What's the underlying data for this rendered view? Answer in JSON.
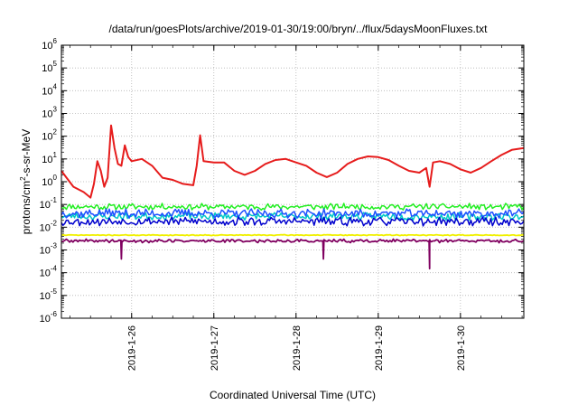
{
  "chart_data": {
    "type": "line",
    "title": "/data/run/goesPlots/archive/2019-01-30/19:00/bryn/../flux/5daysMoonFluxes.txt",
    "xlabel": "Coordinated Universal Time (UTC)",
    "ylabel": {
      "pre": "protons/cm",
      "sup": "2",
      "post": "-s-sr-MeV"
    },
    "x_range_days": [
      "2019-01-25 03:30",
      "2019-01-30 18:30"
    ],
    "x_ticks": [
      "2019-1-26",
      "2019-1-27",
      "2019-1-28",
      "2019-1-29",
      "2019-1-30"
    ],
    "y_scale": "log",
    "ylim": [
      1e-06,
      1000000.0
    ],
    "y_ticks": [
      {
        "base": "10",
        "exp": "-6"
      },
      {
        "base": "10",
        "exp": "-5"
      },
      {
        "base": "10",
        "exp": "-4"
      },
      {
        "base": "10",
        "exp": "-3"
      },
      {
        "base": "10",
        "exp": "-2"
      },
      {
        "base": "10",
        "exp": "-1"
      },
      {
        "base": "10",
        "exp": "0"
      },
      {
        "base": "10",
        "exp": "1"
      },
      {
        "base": "10",
        "exp": "2"
      },
      {
        "base": "10",
        "exp": "3"
      },
      {
        "base": "10",
        "exp": "4"
      },
      {
        "base": "10",
        "exp": "5"
      },
      {
        "base": "10",
        "exp": "6"
      }
    ],
    "grid": true,
    "series": [
      {
        "color": "#e61c1c",
        "width": 2.0,
        "points": [
          [
            "2019-01-25 03:30",
            3.0
          ],
          [
            "2019-01-25 05:00",
            1.5
          ],
          [
            "2019-01-25 07:00",
            0.6
          ],
          [
            "2019-01-25 10:00",
            0.35
          ],
          [
            "2019-01-25 12:00",
            0.2
          ],
          [
            "2019-01-25 13:00",
            0.8
          ],
          [
            "2019-01-25 14:00",
            8
          ],
          [
            "2019-01-25 15:00",
            3
          ],
          [
            "2019-01-25 16:00",
            0.6
          ],
          [
            "2019-01-25 17:00",
            1.5
          ],
          [
            "2019-01-25 18:00",
            300
          ],
          [
            "2019-01-25 19:00",
            30
          ],
          [
            "2019-01-25 20:00",
            6
          ],
          [
            "2019-01-25 21:00",
            5
          ],
          [
            "2019-01-25 22:00",
            40
          ],
          [
            "2019-01-25 23:00",
            12
          ],
          [
            "2019-01-26 00:00",
            8
          ],
          [
            "2019-01-26 03:00",
            10
          ],
          [
            "2019-01-26 06:00",
            5
          ],
          [
            "2019-01-26 09:00",
            1.5
          ],
          [
            "2019-01-26 12:00",
            1.2
          ],
          [
            "2019-01-26 15:00",
            0.8
          ],
          [
            "2019-01-26 18:00",
            0.7
          ],
          [
            "2019-01-26 19:00",
            5
          ],
          [
            "2019-01-26 20:00",
            110
          ],
          [
            "2019-01-26 21:00",
            8
          ],
          [
            "2019-01-27 00:00",
            7
          ],
          [
            "2019-01-27 03:00",
            7
          ],
          [
            "2019-01-27 06:00",
            3
          ],
          [
            "2019-01-27 09:00",
            2
          ],
          [
            "2019-01-27 12:00",
            3
          ],
          [
            "2019-01-27 15:00",
            6
          ],
          [
            "2019-01-27 18:00",
            9
          ],
          [
            "2019-01-27 21:00",
            10
          ],
          [
            "2019-01-28 00:00",
            7
          ],
          [
            "2019-01-28 03:00",
            5
          ],
          [
            "2019-01-28 06:00",
            2.5
          ],
          [
            "2019-01-28 09:00",
            1.6
          ],
          [
            "2019-01-28 12:00",
            2.5
          ],
          [
            "2019-01-28 15:00",
            6
          ],
          [
            "2019-01-28 18:00",
            10
          ],
          [
            "2019-01-28 21:00",
            13
          ],
          [
            "2019-01-29 00:00",
            12
          ],
          [
            "2019-01-29 03:00",
            9
          ],
          [
            "2019-01-29 06:00",
            5
          ],
          [
            "2019-01-29 09:00",
            3
          ],
          [
            "2019-01-29 12:00",
            2.5
          ],
          [
            "2019-01-29 14:00",
            4
          ],
          [
            "2019-01-29 15:00",
            0.6
          ],
          [
            "2019-01-29 16:00",
            7
          ],
          [
            "2019-01-29 18:00",
            8
          ],
          [
            "2019-01-29 21:00",
            6
          ],
          [
            "2019-01-30 00:00",
            3.5
          ],
          [
            "2019-01-30 03:00",
            2.5
          ],
          [
            "2019-01-30 06:00",
            4
          ],
          [
            "2019-01-30 09:00",
            8
          ],
          [
            "2019-01-30 12:00",
            15
          ],
          [
            "2019-01-30 15:00",
            25
          ],
          [
            "2019-01-30 18:30",
            30
          ]
        ]
      },
      {
        "color": "#22ee22",
        "width": 1.5,
        "base": 0.08,
        "amp": 1.4,
        "seed": 11
      },
      {
        "color": "#00c8c8",
        "width": 1.5,
        "base": 0.03,
        "amp": 1.5,
        "seed": 23
      },
      {
        "color": "#1e50ff",
        "width": 1.5,
        "base": 0.04,
        "amp": 1.6,
        "seed": 37
      },
      {
        "color": "#0000cd",
        "width": 1.5,
        "base": 0.018,
        "amp": 1.6,
        "seed": 53
      },
      {
        "color": "#f0f000",
        "width": 1.8,
        "base": 0.0045,
        "amp": 1.05,
        "seed": 71
      },
      {
        "color": "#800060",
        "width": 1.8,
        "base": 0.0025,
        "amp": 1.2,
        "seed": 89,
        "dips": [
          [
            "2019-01-25 21:00",
            0.0004
          ],
          [
            "2019-01-28 08:00",
            0.0004
          ],
          [
            "2019-01-29 15:00",
            0.00015
          ]
        ]
      }
    ]
  }
}
